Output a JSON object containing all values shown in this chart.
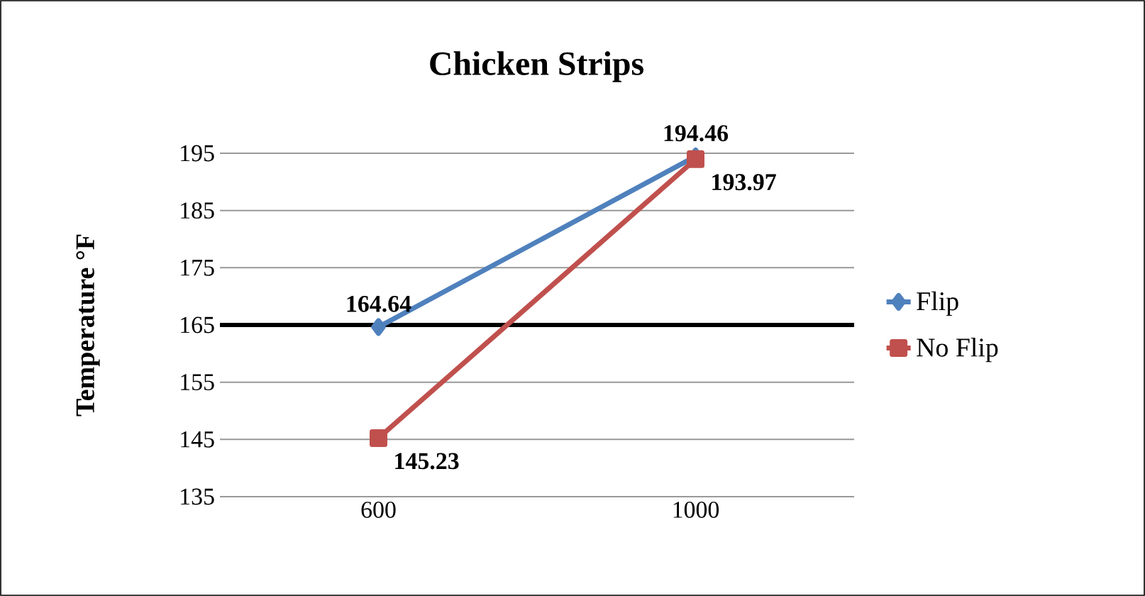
{
  "chart_data": {
    "type": "line",
    "title": "Chicken Strips",
    "ylabel": "Temperature °F",
    "categories": [
      "600",
      "1000"
    ],
    "series": [
      {
        "name": "Flip",
        "color": "#4f81bd",
        "marker": "diamond",
        "values": [
          164.64,
          194.46
        ],
        "value_labels": [
          "164.64",
          "194.46"
        ]
      },
      {
        "name": "No Flip",
        "color": "#c0504d",
        "marker": "square",
        "values": [
          145.23,
          193.97
        ],
        "value_labels": [
          "145.23",
          "193.97"
        ]
      }
    ],
    "ylim": [
      135,
      195
    ],
    "yticks": [
      135,
      145,
      155,
      165,
      175,
      185,
      195
    ],
    "ref_lines": [
      {
        "axis": "y",
        "value": 165,
        "color": "#000000"
      }
    ],
    "grid": "y",
    "legend": "right",
    "line_style": "solid"
  }
}
